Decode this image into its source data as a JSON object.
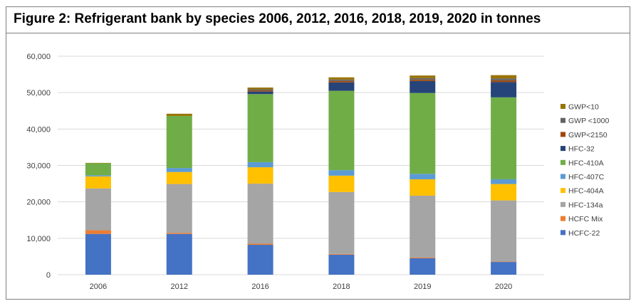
{
  "chart_data": {
    "type": "bar",
    "stacked": true,
    "title": "Figure 2: Refrigerant bank by species 2006, 2012, 2016, 2018, 2019, 2020 in tonnes",
    "xlabel": "",
    "ylabel": "",
    "ylim": [
      0,
      60000
    ],
    "yticks": [
      0,
      10000,
      20000,
      30000,
      40000,
      50000,
      60000
    ],
    "ytick_labels": [
      "0",
      "10,000",
      "20,000",
      "30,000",
      "40,000",
      "50,000",
      "60,000"
    ],
    "grid": true,
    "legend_position": "right",
    "categories": [
      "2006",
      "2012",
      "2016",
      "2018",
      "2019",
      "2020"
    ],
    "series": [
      {
        "name": "HCFC-22",
        "color": "#4472c4",
        "values": [
          11200,
          11200,
          8200,
          5500,
          4500,
          3500
        ]
      },
      {
        "name": "HCFC Mix",
        "color": "#ed7d31",
        "values": [
          1000,
          300,
          300,
          200,
          200,
          100
        ]
      },
      {
        "name": "HFC-134a",
        "color": "#a5a5a5",
        "values": [
          11500,
          13400,
          16500,
          17000,
          17000,
          16800
        ]
      },
      {
        "name": "HFC-404A",
        "color": "#ffc000",
        "values": [
          3300,
          3300,
          4500,
          4500,
          4500,
          4500
        ]
      },
      {
        "name": "HFC-407C",
        "color": "#5b9bd5",
        "values": [
          300,
          1100,
          1400,
          1500,
          1500,
          1300
        ]
      },
      {
        "name": "HFC-410A",
        "color": "#70ad47",
        "values": [
          3300,
          14300,
          18700,
          21800,
          22200,
          22500
        ]
      },
      {
        "name": "HFC-32",
        "color": "#264478",
        "values": [
          0,
          0,
          700,
          2300,
          3300,
          4200
        ]
      },
      {
        "name": "GWP<2150",
        "color": "#9e480e",
        "values": [
          0,
          0,
          300,
          400,
          400,
          500
        ]
      },
      {
        "name": "GWP <1000",
        "color": "#636363",
        "values": [
          0,
          0,
          300,
          400,
          400,
          500
        ]
      },
      {
        "name": "GWP<10",
        "color": "#997300",
        "values": [
          100,
          600,
          500,
          600,
          700,
          900
        ]
      }
    ]
  }
}
